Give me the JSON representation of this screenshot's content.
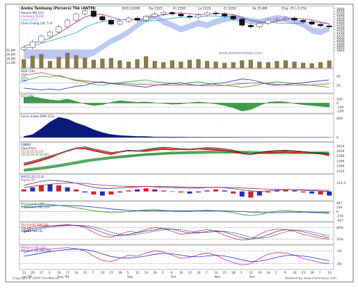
{
  "header": {
    "title": "Aneka Tambang (Persero) Tbk (ANTM)",
    "date": "20/11/2009",
    "open": "Op 2325",
    "high": "Hi 2350",
    "low": "Lo 2225",
    "close": "Cl 2250",
    "volume": "Vo 25.6M",
    "change": "Chg -75 (-3.2%)"
  },
  "price_legend": [
    "Volume MA (15)",
    "Ichimoku (9,26)",
    "Close (275)",
    "Chan Ceiling (24, 5.4)"
  ],
  "watermark": "www.duniainvestasi.com",
  "footer": {
    "left": "Copyright © 2009 ChartNexus",
    "right": "Powered by www.chartnexus.com"
  },
  "colors": {
    "bg": "#ffffff",
    "grid": "#c8c8c8",
    "cloud": "#9fb0ee",
    "adx": "#d63a3a",
    "dmi_plus": "#2a9d3a",
    "dmi_minus": "#1e2fbf",
    "green": "#1f8b2a",
    "red": "#d41f1f",
    "blue": "#1e2fbf",
    "black": "#111111",
    "navy": "#0a1a7a",
    "olive": "#8a7a4a",
    "magenta": "#c8289a",
    "cyan": "#1aa8c8"
  },
  "chart_data": [
    {
      "type": "candlestick",
      "title": "Aneka Tambang (Persero) Tbk (ANTM)",
      "x": [
        "13",
        "20",
        "27",
        "3",
        "10",
        "17",
        "24",
        "31",
        "7",
        "14",
        "21",
        "28",
        "5",
        "12",
        "19",
        "26",
        "2",
        "9",
        "16",
        "23",
        "30",
        "7",
        "14",
        "21",
        "28",
        "5",
        "12",
        "19",
        "26",
        "2",
        "9",
        "16",
        "23",
        "30",
        "7",
        "14"
      ],
      "month_labels": [
        "Jul '09",
        "Aug '09",
        "Sep",
        "Oct",
        "Nov",
        "Dec"
      ],
      "close": [
        1850,
        1960,
        2070,
        2150,
        2250,
        2380,
        2500,
        2560,
        2450,
        2380,
        2300,
        2360,
        2420,
        2380,
        2450,
        2500,
        2530,
        2500,
        2460,
        2440,
        2480,
        2520,
        2500,
        2460,
        2400,
        2280,
        2250,
        2320,
        2380,
        2400,
        2420,
        2380,
        2350,
        2300,
        2270,
        2250
      ],
      "yticks": [
        "2650",
        "2600",
        "2550",
        "2500",
        "2450",
        "2400",
        "2350",
        "2300",
        "2250",
        "2200",
        "2150",
        "2100",
        "2050",
        "2000",
        "1950",
        "1900",
        "1850",
        "1800"
      ],
      "ylim": [
        1800,
        2650
      ],
      "volume_ticks": [
        "52.8M",
        "39.6M",
        "26.4M",
        "13.2M"
      ],
      "volume": [
        30,
        42,
        48,
        24,
        38,
        52,
        44,
        36,
        28,
        32,
        34,
        26,
        22,
        30,
        40,
        24,
        20,
        26,
        22,
        28,
        30,
        24,
        22,
        18,
        20,
        26,
        28,
        22,
        20,
        24,
        26,
        22,
        18,
        16,
        20,
        25.6
      ]
    },
    {
      "type": "line",
      "title": "ADX (14)",
      "legend": [
        "ADX",
        "DMI+",
        "DMI-"
      ],
      "yticks": [
        "60",
        "40",
        "20"
      ],
      "series": [
        {
          "name": "ADX",
          "values": [
            42,
            45,
            48,
            44,
            40,
            36,
            32,
            30,
            28,
            26,
            25,
            24,
            23,
            22,
            22,
            21,
            21,
            20,
            20,
            21,
            20,
            19,
            19,
            20,
            22,
            24,
            25,
            26,
            24,
            22,
            21,
            20,
            20,
            21,
            22,
            23
          ]
        },
        {
          "name": "DMI+",
          "values": [
            30,
            35,
            40,
            38,
            42,
            36,
            30,
            28,
            22,
            20,
            24,
            26,
            28,
            30,
            32,
            28,
            26,
            24,
            22,
            26,
            28,
            24,
            22,
            20,
            18,
            16,
            18,
            22,
            26,
            28,
            26,
            24,
            22,
            20,
            18,
            16
          ]
        },
        {
          "name": "DMI-",
          "values": [
            14,
            12,
            10,
            12,
            10,
            14,
            18,
            20,
            26,
            28,
            24,
            22,
            20,
            18,
            16,
            20,
            22,
            24,
            26,
            22,
            20,
            22,
            24,
            26,
            30,
            34,
            32,
            28,
            22,
            20,
            22,
            24,
            26,
            28,
            30,
            32
          ]
        }
      ]
    },
    {
      "type": "area",
      "title": "CCI (20)",
      "yticks": [
        "100",
        "0",
        "-100",
        "-200"
      ],
      "values": [
        140,
        160,
        120,
        80,
        60,
        100,
        40,
        -20,
        -60,
        -40,
        20,
        60,
        40,
        20,
        30,
        10,
        -10,
        -30,
        -20,
        10,
        30,
        10,
        -20,
        -60,
        -120,
        -200,
        -160,
        -60,
        20,
        40,
        30,
        -10,
        -40,
        -60,
        -80,
        -100
      ]
    },
    {
      "type": "area",
      "title": "Force Index EMA (13)",
      "yticks": [
        "400",
        "0",
        "-400"
      ],
      "values": [
        20,
        60,
        180,
        320,
        420,
        380,
        300,
        240,
        160,
        100,
        60,
        40,
        30,
        20,
        20,
        10,
        10,
        8,
        6,
        5,
        5,
        4,
        4,
        3,
        3,
        2,
        2,
        2,
        2,
        2,
        1,
        1,
        1,
        1,
        1,
        1
      ]
    },
    {
      "type": "line",
      "title": "GMMA",
      "legend": [
        "Close Price",
        "(3,5,8,10,12,15)",
        "(30,35,40,45,50,60)"
      ],
      "yticks": [
        "2424",
        "2404",
        "2384",
        "2364",
        "2344",
        "2324"
      ],
      "short_ma_base": [
        1900,
        1980,
        2080,
        2180,
        2280,
        2400,
        2500,
        2540,
        2460,
        2390,
        2320,
        2360,
        2410,
        2390,
        2440,
        2490,
        2520,
        2500,
        2470,
        2450,
        2480,
        2510,
        2500,
        2460,
        2410,
        2300,
        2270,
        2320,
        2370,
        2400,
        2410,
        2390,
        2360,
        2320,
        2290,
        2270
      ],
      "long_ma_base": [
        1700,
        1740,
        1780,
        1830,
        1880,
        1940,
        2000,
        2060,
        2110,
        2150,
        2190,
        2220,
        2250,
        2280,
        2310,
        2330,
        2350,
        2370,
        2380,
        2390,
        2400,
        2410,
        2420,
        2420,
        2420,
        2410,
        2400,
        2395,
        2390,
        2390,
        2390,
        2388,
        2385,
        2380,
        2375,
        2370
      ]
    },
    {
      "type": "bar",
      "title": "MACD (26,12,9)",
      "legend": [
        "MACD (26,12,9)",
        "Signal (9)"
      ],
      "yticks": [
        "123.3"
      ],
      "histogram": [
        20,
        40,
        60,
        70,
        60,
        40,
        20,
        -10,
        -30,
        -40,
        -30,
        -10,
        10,
        20,
        30,
        20,
        10,
        0,
        -10,
        -20,
        -10,
        10,
        20,
        10,
        -20,
        -50,
        -60,
        -40,
        -10,
        10,
        20,
        10,
        -10,
        -20,
        -30,
        -40
      ],
      "series": [
        {
          "name": "MACD (26,12,9)",
          "values": [
            60,
            80,
            100,
            110,
            105,
            95,
            80,
            60,
            40,
            30,
            30,
            35,
            40,
            45,
            50,
            45,
            40,
            38,
            35,
            32,
            34,
            38,
            40,
            36,
            28,
            15,
            5,
            0,
            5,
            12,
            18,
            16,
            12,
            8,
            4,
            0
          ]
        },
        {
          "name": "Signal (9)",
          "values": [
            40,
            50,
            60,
            70,
            78,
            82,
            82,
            78,
            70,
            62,
            56,
            52,
            50,
            49,
            49,
            49,
            48,
            46,
            44,
            42,
            40,
            40,
            40,
            39,
            37,
            34,
            30,
            26,
            22,
            20,
            19,
            18,
            17,
            15,
            13,
            11
          ]
        }
      ]
    },
    {
      "type": "line",
      "title": "Momentum (10)",
      "legend": [
        "Momentum (10)",
        "Momentum MA (10)"
      ],
      "yticks": [
        "467",
        "234",
        "0",
        "-234",
        "-467"
      ],
      "series": [
        {
          "name": "Momentum (10)",
          "values": [
            300,
            360,
            400,
            380,
            320,
            280,
            200,
            120,
            40,
            -20,
            -60,
            -40,
            0,
            40,
            80,
            100,
            60,
            20,
            -20,
            0,
            40,
            60,
            40,
            0,
            -60,
            -160,
            -220,
            -160,
            -60,
            20,
            40,
            20,
            -20,
            -60,
            -80,
            -100
          ]
        },
        {
          "name": "Momentum MA (10)",
          "values": [
            200,
            240,
            280,
            310,
            320,
            320,
            310,
            280,
            240,
            190,
            140,
            100,
            60,
            40,
            30,
            30,
            30,
            30,
            30,
            30,
            30,
            30,
            30,
            28,
            20,
            0,
            -30,
            -50,
            -60,
            -60,
            -50,
            -40,
            -30,
            -30,
            -40,
            -50
          ]
        }
      ]
    },
    {
      "type": "line",
      "title": "Stochastic %K (14)",
      "legend": [
        "Stochastic %K (14)",
        "%D (3)",
        "Slowed %D (3)"
      ],
      "yticks": [
        "80%",
        "20%"
      ],
      "series": [
        {
          "name": "%K",
          "values": [
            70,
            85,
            90,
            88,
            92,
            95,
            90,
            80,
            55,
            35,
            30,
            45,
            60,
            55,
            70,
            80,
            75,
            60,
            45,
            50,
            62,
            70,
            60,
            40,
            25,
            15,
            20,
            45,
            65,
            72,
            70,
            60,
            45,
            35,
            25,
            20
          ]
        },
        {
          "name": "%D",
          "values": [
            60,
            75,
            82,
            88,
            90,
            92,
            92,
            86,
            72,
            55,
            40,
            37,
            45,
            53,
            62,
            68,
            75,
            72,
            60,
            52,
            52,
            60,
            64,
            57,
            42,
            27,
            20,
            27,
            43,
            61,
            69,
            67,
            58,
            47,
            35,
            27
          ]
        },
        {
          "name": "Slowed %D",
          "values": [
            55,
            65,
            75,
            82,
            87,
            90,
            91,
            90,
            83,
            71,
            56,
            44,
            41,
            45,
            53,
            61,
            68,
            72,
            69,
            61,
            55,
            55,
            59,
            60,
            54,
            42,
            30,
            25,
            30,
            44,
            58,
            66,
            65,
            57,
            47,
            36
          ]
        }
      ]
    },
    {
      "type": "line",
      "title": "Williams %R (14)",
      "legend": [
        "Williams %R (14)",
        "Williams %R MA (14)"
      ],
      "yticks": [
        "-20",
        "-80"
      ],
      "series": [
        {
          "name": "Williams %R (14)",
          "values": [
            -30,
            -15,
            -10,
            -12,
            -8,
            -5,
            -10,
            -20,
            -45,
            -65,
            -70,
            -55,
            -40,
            -45,
            -30,
            -20,
            -25,
            -40,
            -55,
            -50,
            -38,
            -30,
            -40,
            -60,
            -75,
            -85,
            -80,
            -55,
            -35,
            -28,
            -30,
            -40,
            -55,
            -65,
            -75,
            -80
          ]
        },
        {
          "name": "Williams %R MA (14)",
          "values": [
            -45,
            -38,
            -30,
            -24,
            -18,
            -14,
            -12,
            -14,
            -22,
            -34,
            -46,
            -52,
            -54,
            -50,
            -44,
            -36,
            -32,
            -34,
            -40,
            -46,
            -48,
            -44,
            -40,
            -44,
            -52,
            -62,
            -70,
            -68,
            -60,
            -50,
            -42,
            -40,
            -44,
            -50,
            -58,
            -66
          ]
        }
      ]
    }
  ]
}
